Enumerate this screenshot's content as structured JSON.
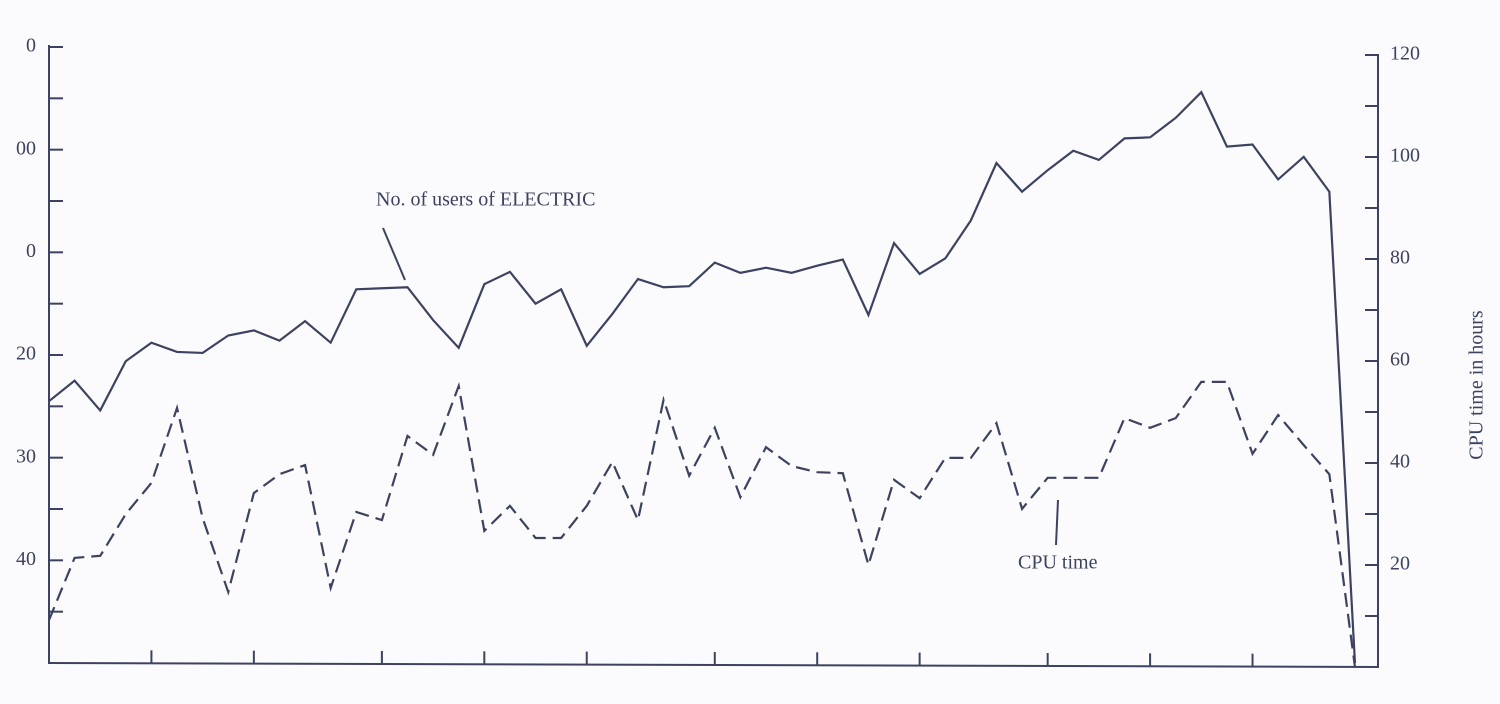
{
  "chart_data": {
    "type": "line",
    "x": [
      0,
      1,
      2,
      3,
      4,
      5,
      6,
      7,
      8,
      9,
      10,
      11,
      12,
      13,
      14,
      15,
      16,
      17,
      18,
      19,
      20,
      21,
      22,
      23,
      24,
      25,
      26,
      27,
      28,
      29,
      30,
      31,
      32,
      33,
      34,
      35,
      36,
      37,
      38,
      39,
      40,
      41,
      42,
      43,
      44,
      45,
      46,
      47,
      48,
      49,
      50,
      51
    ],
    "xlim": [
      0,
      51.9
    ],
    "xticks": [
      4,
      8,
      13,
      17,
      21,
      26,
      30,
      34,
      39,
      43,
      47
    ],
    "ylim": [
      0,
      6
    ],
    "yticks": [
      {
        "value": 1,
        "label": "40"
      },
      {
        "value": 2,
        "label": "30"
      },
      {
        "value": 3,
        "label": "20"
      },
      {
        "value": 4,
        "label": "0"
      },
      {
        "value": 5,
        "label": "00"
      },
      {
        "value": 6,
        "label": "0"
      }
    ],
    "yminorticks": [
      0.5,
      1.5,
      2.5,
      3.5,
      4.5,
      5.5
    ],
    "y2lim": [
      0,
      120
    ],
    "y2ticks": [
      20,
      40,
      60,
      80,
      100,
      120
    ],
    "y2minorticks": [
      10,
      30,
      50,
      70,
      90,
      110
    ],
    "y2label": "CPU time in hours",
    "series": [
      {
        "name": "No. of users of ELECTRIC",
        "color": "#3d4260",
        "style": "solid",
        "axis": "y",
        "values": [
          2.55,
          2.75,
          2.46,
          2.94,
          3.12,
          3.03,
          3.02,
          3.19,
          3.24,
          3.14,
          3.33,
          3.12,
          3.64,
          3.65,
          3.66,
          3.34,
          3.07,
          3.69,
          3.81,
          3.5,
          3.64,
          3.09,
          3.4,
          3.74,
          3.66,
          3.67,
          3.9,
          3.8,
          3.85,
          3.8,
          3.87,
          3.93,
          3.39,
          4.09,
          3.79,
          3.94,
          4.31,
          4.87,
          4.59,
          4.8,
          4.99,
          4.9,
          5.11,
          5.12,
          5.31,
          5.56,
          5.03,
          5.05,
          4.71,
          4.93,
          4.59,
          0
        ]
      },
      {
        "name": "CPU time",
        "color": "#3d4260",
        "style": "dashed",
        "axis": "y2",
        "values": [
          9.2,
          21.4,
          21.8,
          30,
          36.1,
          50.8,
          29.2,
          14.7,
          34.1,
          37.8,
          39.6,
          15.5,
          30.4,
          28.8,
          45.3,
          41.6,
          55.1,
          26.7,
          31.6,
          25.3,
          25.3,
          31.6,
          40.2,
          28.8,
          52.4,
          37.5,
          46.9,
          33.3,
          43.1,
          39.4,
          38.2,
          38,
          20,
          36.7,
          33.1,
          41,
          41,
          47.8,
          31,
          37.1,
          37.1,
          37.1,
          48.8,
          46.9,
          48.8,
          55.9,
          55.9,
          41.8,
          49.4,
          43.5,
          37.8,
          0
        ]
      }
    ]
  }
}
